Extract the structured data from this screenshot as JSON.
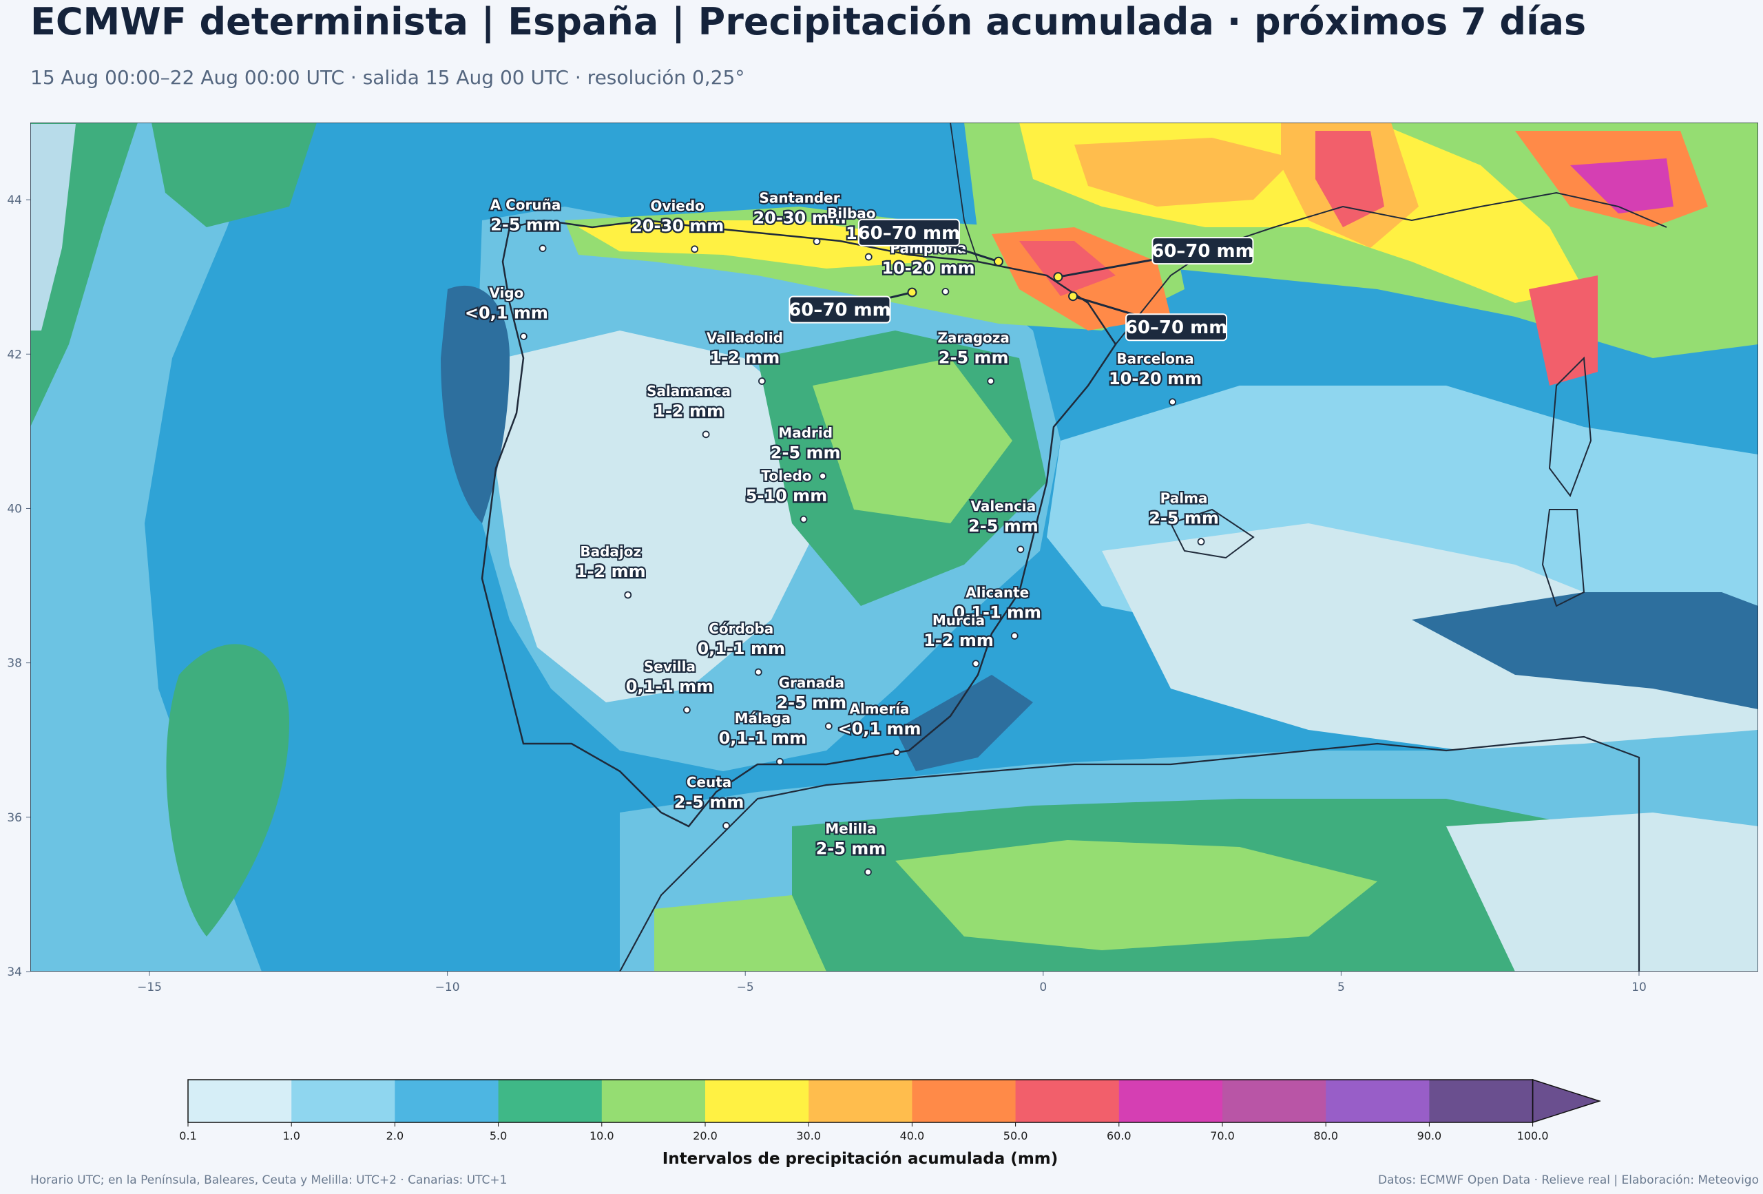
{
  "title": "ECMWF determinista | España | Precipitación acumulada · próximos 7 días",
  "subtitle": "15 Aug 00:00–22 Aug 00:00 UTC · salida 15 Aug 00 UTC · resolución 0,25°",
  "map": {
    "lon_range": [
      -17,
      12
    ],
    "lat_range": [
      34,
      45
    ],
    "x_ticks": [
      "−15",
      "−10",
      "−5",
      "0",
      "5",
      "10"
    ],
    "x_tick_values": [
      -15,
      -10,
      -5,
      0,
      5,
      10
    ],
    "y_ticks": [
      "34",
      "36",
      "38",
      "40",
      "42",
      "44"
    ],
    "y_tick_values": [
      34,
      36,
      38,
      40,
      42,
      44
    ],
    "cities": [
      {
        "name": "A Coruña",
        "value": "2-5 mm",
        "lon": -8.4,
        "lat": 43.37
      },
      {
        "name": "Oviedo",
        "value": "20-30 mm",
        "lon": -5.85,
        "lat": 43.36
      },
      {
        "name": "Santander",
        "value": "20-30 mm",
        "lon": -3.8,
        "lat": 43.46
      },
      {
        "name": "Bilbao",
        "value": "1",
        "lon": -2.93,
        "lat": 43.26
      },
      {
        "name": "Pamplona",
        "value": "10-20 mm",
        "lon": -1.64,
        "lat": 42.81
      },
      {
        "name": "Vigo",
        "value": "<0,1 mm",
        "lon": -8.72,
        "lat": 42.23
      },
      {
        "name": "Valladolid",
        "value": "1-2 mm",
        "lon": -4.72,
        "lat": 41.65
      },
      {
        "name": "Zaragoza",
        "value": "2-5 mm",
        "lon": -0.88,
        "lat": 41.65
      },
      {
        "name": "Barcelona",
        "value": "10-20 mm",
        "lon": 2.17,
        "lat": 41.38
      },
      {
        "name": "Salamanca",
        "value": "1-2 mm",
        "lon": -5.66,
        "lat": 40.96
      },
      {
        "name": "Madrid",
        "value": "2-5 mm",
        "lon": -3.7,
        "lat": 40.42
      },
      {
        "name": "Valencia",
        "value": "2-5 mm",
        "lon": -0.38,
        "lat": 39.47
      },
      {
        "name": "Toledo",
        "value": "5-10 mm",
        "lon": -4.02,
        "lat": 39.86
      },
      {
        "name": "Badajoz",
        "value": "1-2 mm",
        "lon": -6.97,
        "lat": 38.88
      },
      {
        "name": "Palma",
        "value": "2-5 mm",
        "lon": 2.65,
        "lat": 39.57
      },
      {
        "name": "Córdoba",
        "value": "0,1-1 mm",
        "lon": -4.78,
        "lat": 37.88
      },
      {
        "name": "Alicante",
        "value": "0,1-1 mm",
        "lon": -0.48,
        "lat": 38.35
      },
      {
        "name": "Murcia",
        "value": "1-2 mm",
        "lon": -1.13,
        "lat": 37.99
      },
      {
        "name": "Granada",
        "value": "2-5 mm",
        "lon": -3.6,
        "lat": 37.18
      },
      {
        "name": "Sevilla",
        "value": "0,1-1 mm",
        "lon": -5.98,
        "lat": 37.39
      },
      {
        "name": "Almería",
        "value": "<0,1 mm",
        "lon": -2.46,
        "lat": 36.84
      },
      {
        "name": "Málaga",
        "value": "0,1-1 mm",
        "lon": -4.42,
        "lat": 36.72
      },
      {
        "name": "Ceuta",
        "value": "2-5 mm",
        "lon": -5.32,
        "lat": 35.89
      },
      {
        "name": "Melilla",
        "value": "2-5 mm",
        "lon": -2.94,
        "lat": 35.29
      }
    ],
    "peaks": [
      {
        "value": "60–70 mm",
        "lon": -0.75,
        "lat": 43.2
      },
      {
        "value": "60–70 mm",
        "lon": -2.2,
        "lat": 42.8
      },
      {
        "value": "60–70 mm",
        "lon": 0.25,
        "lat": 43.0
      },
      {
        "value": "60–70 mm",
        "lon": 0.5,
        "lat": 42.75
      }
    ]
  },
  "colorbar": {
    "label": "Intervalos de precipitación acumulada (mm)",
    "levels": [
      "0.1",
      "1.0",
      "2.0",
      "5.0",
      "10.0",
      "20.0",
      "30.0",
      "40.0",
      "50.0",
      "60.0",
      "70.0",
      "80.0",
      "90.0",
      "100.0"
    ],
    "colors": [
      "#d6eef7",
      "#8fd6ef",
      "#4db6e2",
      "#3fb887",
      "#95dd72",
      "#fff143",
      "#ffbd4d",
      "#ff8a48",
      "#f25f6b",
      "#d53fb3",
      "#b955a6",
      "#985ec8",
      "#6a4f8f"
    ],
    "extend_color": "#6a4f8f"
  },
  "footer": {
    "left": "Horario UTC; en la Península, Baleares, Ceuta y Melilla: UTC+2 · Canarias: UTC+1",
    "right": "Datos: ECMWF Open Data · Relieve real | Elaboración: Meteovigo"
  }
}
